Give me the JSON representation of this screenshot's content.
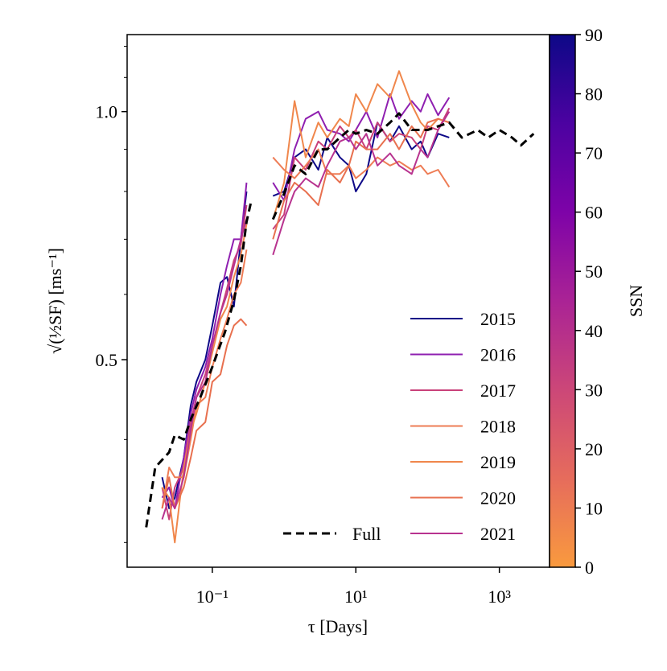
{
  "chart_data": {
    "type": "line",
    "xlabel": "τ [Days]",
    "ylabel": "√(½SF) [ms⁻¹]",
    "xscale": "log",
    "yscale": "log",
    "xlim": [
      0.0065,
      5000
    ],
    "ylim": [
      0.28,
      1.24
    ],
    "xticks": [
      {
        "value": 0.1,
        "label": "10⁻¹"
      },
      {
        "value": 10,
        "label": "10¹"
      },
      {
        "value": 1000,
        "label": "10³"
      }
    ],
    "yticks": [
      {
        "value": 0.5,
        "label": "0.5"
      },
      {
        "value": 1.0,
        "label": "1.0"
      }
    ],
    "yminor_ticks": [
      0.3,
      0.4,
      0.6,
      0.7,
      0.8,
      0.9,
      1.1,
      1.2
    ],
    "legend": "lower right",
    "series": [
      {
        "name": "2015",
        "color": "#0d0887",
        "x": [
          0.02,
          0.025,
          0.03,
          0.04,
          0.05,
          0.06,
          0.08,
          0.1,
          0.13,
          0.16,
          0.2,
          0.25,
          0.3,
          null,
          0.7,
          1,
          1.4,
          2,
          3,
          4,
          6,
          8,
          10,
          14,
          20,
          30,
          40,
          60,
          80,
          100,
          140,
          200
        ],
        "values": [
          0.36,
          0.33,
          0.34,
          0.38,
          0.44,
          0.47,
          0.5,
          0.55,
          0.62,
          0.63,
          0.58,
          0.7,
          0.8,
          null,
          0.79,
          0.8,
          0.88,
          0.9,
          0.85,
          0.93,
          0.88,
          0.86,
          0.8,
          0.84,
          0.97,
          0.92,
          0.96,
          0.9,
          0.92,
          0.88,
          0.94,
          0.93
        ]
      },
      {
        "name": "2016",
        "color": "#8f1fb0",
        "x": [
          0.02,
          0.025,
          0.03,
          0.04,
          0.05,
          0.06,
          0.08,
          0.1,
          0.13,
          0.16,
          0.2,
          0.25,
          0.3,
          null,
          0.7,
          1,
          1.4,
          2,
          3,
          4,
          6,
          8,
          10,
          14,
          20,
          30,
          40,
          60,
          80,
          100,
          140,
          200
        ],
        "values": [
          0.34,
          0.35,
          0.33,
          0.38,
          0.43,
          0.46,
          0.49,
          0.53,
          0.6,
          0.65,
          0.7,
          0.7,
          0.82,
          null,
          0.82,
          0.78,
          0.9,
          0.98,
          1.0,
          0.95,
          0.94,
          0.92,
          0.95,
          1.0,
          0.93,
          1.05,
          0.98,
          1.03,
          1.0,
          1.05,
          0.99,
          1.04
        ]
      },
      {
        "name": "2017",
        "color": "#c9417a",
        "x": [
          0.02,
          0.025,
          0.03,
          0.04,
          0.05,
          0.06,
          0.08,
          0.1,
          0.13,
          0.16,
          0.2,
          0.25,
          0.3,
          null,
          0.7,
          1,
          1.4,
          2,
          3,
          4,
          6,
          8,
          10,
          14,
          20,
          30,
          40,
          60,
          80,
          100,
          140,
          200
        ],
        "values": [
          0.35,
          0.32,
          0.35,
          0.37,
          0.42,
          0.45,
          0.48,
          0.52,
          0.57,
          0.61,
          0.66,
          0.69,
          0.77,
          null,
          0.72,
          0.75,
          0.88,
          0.85,
          0.92,
          0.9,
          0.96,
          0.93,
          0.95,
          0.9,
          0.97,
          0.92,
          0.94,
          0.93,
          0.9,
          0.96,
          0.95,
          1.01
        ]
      },
      {
        "name": "2018",
        "color": "#ee7c55",
        "x": [
          0.02,
          0.025,
          0.03,
          0.04,
          0.05,
          0.06,
          0.08,
          0.1,
          0.13,
          0.16,
          0.2,
          0.25,
          0.3,
          null,
          0.7,
          1,
          1.4,
          2,
          3,
          4,
          6,
          8,
          10,
          14,
          20,
          30,
          40,
          60,
          80,
          100,
          140,
          200
        ],
        "values": [
          0.33,
          0.37,
          0.36,
          0.36,
          0.4,
          0.44,
          0.45,
          0.49,
          0.53,
          0.56,
          0.6,
          0.62,
          0.68,
          null,
          0.88,
          0.85,
          0.83,
          0.86,
          0.9,
          0.84,
          0.84,
          0.86,
          0.83,
          0.85,
          0.88,
          0.86,
          0.87,
          0.85,
          0.86,
          0.84,
          0.85,
          0.81
        ]
      },
      {
        "name": "2019",
        "color": "#f0874c",
        "x": [
          0.02,
          0.025,
          0.03,
          0.04,
          0.05,
          0.06,
          0.08,
          0.1,
          0.13,
          0.16,
          0.2,
          0.25,
          0.3,
          null,
          0.7,
          1,
          1.4,
          2,
          3,
          4,
          6,
          8,
          10,
          14,
          20,
          30,
          40,
          60,
          80,
          100,
          140,
          200
        ],
        "values": [
          0.35,
          0.34,
          0.3,
          0.37,
          0.41,
          0.43,
          0.47,
          0.51,
          0.56,
          0.58,
          0.63,
          0.67,
          0.73,
          null,
          0.74,
          0.82,
          1.03,
          0.88,
          0.97,
          0.93,
          0.98,
          0.96,
          1.05,
          1.0,
          1.08,
          1.04,
          1.12,
          1.02,
          0.97,
          0.95,
          0.98,
          0.97
        ]
      },
      {
        "name": "2020",
        "color": "#e8704f",
        "x": [
          0.02,
          0.025,
          0.03,
          0.04,
          0.05,
          0.06,
          0.08,
          0.1,
          0.13,
          0.16,
          0.2,
          0.25,
          0.3,
          null,
          0.7,
          1,
          1.4,
          2,
          3,
          4,
          6,
          8,
          10,
          14,
          20,
          30,
          40,
          60,
          80,
          100,
          140,
          200
        ],
        "values": [
          0.33,
          0.36,
          0.33,
          0.35,
          0.38,
          0.41,
          0.42,
          0.47,
          0.48,
          0.52,
          0.55,
          0.56,
          0.55,
          null,
          0.7,
          0.78,
          0.82,
          0.8,
          0.77,
          0.85,
          0.82,
          0.86,
          0.92,
          0.9,
          0.9,
          0.94,
          0.9,
          0.96,
          0.93,
          0.97,
          0.98,
          0.97
        ]
      },
      {
        "name": "2021",
        "color": "#b8338f",
        "x": [
          0.02,
          0.025,
          0.03,
          0.04,
          0.05,
          0.06,
          0.08,
          0.1,
          0.13,
          0.16,
          0.2,
          0.25,
          0.3,
          null,
          0.7,
          1,
          1.4,
          2,
          3,
          4,
          6,
          8,
          10,
          14,
          20,
          30,
          40,
          60,
          80,
          100,
          140,
          200
        ],
        "values": [
          0.32,
          0.34,
          0.33,
          0.36,
          0.41,
          0.45,
          0.47,
          0.52,
          0.57,
          0.6,
          0.65,
          0.7,
          0.74,
          null,
          0.67,
          0.74,
          0.8,
          0.83,
          0.81,
          0.86,
          0.92,
          0.93,
          0.9,
          0.94,
          0.86,
          0.89,
          0.86,
          0.84,
          0.9,
          0.88,
          0.95,
          1.0
        ]
      },
      {
        "name": "Full",
        "color": "#000000",
        "dashed": true,
        "x": [
          0.012,
          0.016,
          0.025,
          0.03,
          0.04,
          0.05,
          0.07,
          0.1,
          0.15,
          0.2,
          0.25,
          0.3,
          0.35,
          null,
          0.7,
          1,
          1.4,
          2,
          3,
          4,
          6,
          8,
          10,
          14,
          20,
          30,
          40,
          60,
          100,
          200,
          300,
          500,
          700,
          1000,
          1500,
          2000,
          3000
        ],
        "values": [
          0.313,
          0.37,
          0.386,
          0.405,
          0.4,
          0.423,
          0.453,
          0.49,
          0.54,
          0.59,
          0.65,
          0.735,
          0.78,
          null,
          0.74,
          0.795,
          0.86,
          0.84,
          0.9,
          0.9,
          0.93,
          0.95,
          0.94,
          0.95,
          0.94,
          0.97,
          0.995,
          0.95,
          0.95,
          0.97,
          0.93,
          0.95,
          0.93,
          0.95,
          0.93,
          0.91,
          0.94
        ]
      }
    ],
    "colorbar": {
      "label": "SSN",
      "lim": [
        0,
        90
      ],
      "ticks": [
        0,
        10,
        20,
        30,
        40,
        50,
        60,
        70,
        80,
        90
      ],
      "colors": [
        "#f99a3e",
        "#e66c5c",
        "#cc4778",
        "#aa2395",
        "#7e03a8",
        "#4c02a1",
        "#0d0887"
      ]
    }
  }
}
